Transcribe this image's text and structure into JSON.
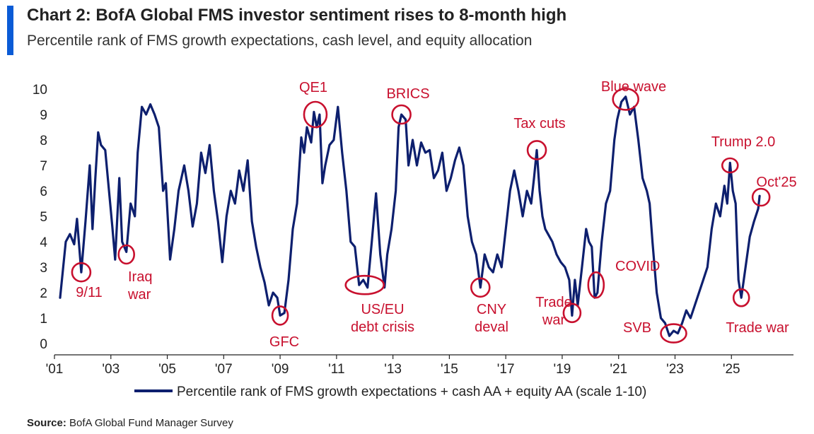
{
  "header": {
    "title": "Chart 2: BofA Global FMS investor sentiment rises to 8-month high",
    "subtitle": "Percentile rank of FMS growth expectations, cash level, and equity allocation"
  },
  "footer": {
    "source_label": "Source:",
    "source_text": "BofA Global Fund Manager Survey"
  },
  "colors": {
    "line": "#0d1f6e",
    "annotation": "#c8102e",
    "accent": "#0a5bd6"
  },
  "chart_data": {
    "type": "line",
    "title": "Chart 2: BofA Global FMS investor sentiment rises to 8-month high",
    "subtitle": "Percentile rank of FMS growth expectations, cash level, and equity allocation",
    "xlabel": "",
    "ylabel": "",
    "xlim": [
      2001.0,
      2027.2
    ],
    "ylim": [
      0,
      10
    ],
    "yticks": [
      0,
      1,
      2,
      3,
      4,
      5,
      6,
      7,
      8,
      9,
      10
    ],
    "xticks": [
      {
        "value": 2001,
        "label": "'01"
      },
      {
        "value": 2003,
        "label": "'03"
      },
      {
        "value": 2005,
        "label": "'05"
      },
      {
        "value": 2007,
        "label": "'07"
      },
      {
        "value": 2009,
        "label": "'09"
      },
      {
        "value": 2011,
        "label": "'11"
      },
      {
        "value": 2013,
        "label": "'13"
      },
      {
        "value": 2015,
        "label": "'15"
      },
      {
        "value": 2017,
        "label": "'17"
      },
      {
        "value": 2019,
        "label": "'19"
      },
      {
        "value": 2021,
        "label": "'21"
      },
      {
        "value": 2023,
        "label": "'23"
      },
      {
        "value": 2025,
        "label": "'25"
      }
    ],
    "grid": false,
    "legend_position": "bottom",
    "series": [
      {
        "name": "Percentile rank of FMS growth expectations + cash AA + equity AA (scale 1-10)",
        "points": [
          [
            2001.2,
            1.8
          ],
          [
            2001.4,
            4.0
          ],
          [
            2001.55,
            4.3
          ],
          [
            2001.7,
            3.9
          ],
          [
            2001.8,
            4.9
          ],
          [
            2001.95,
            2.8
          ],
          [
            2002.1,
            4.8
          ],
          [
            2002.25,
            7.0
          ],
          [
            2002.35,
            4.5
          ],
          [
            2002.45,
            6.5
          ],
          [
            2002.55,
            8.3
          ],
          [
            2002.65,
            7.8
          ],
          [
            2002.8,
            7.6
          ],
          [
            2002.95,
            5.8
          ],
          [
            2003.05,
            4.6
          ],
          [
            2003.15,
            3.3
          ],
          [
            2003.3,
            6.5
          ],
          [
            2003.4,
            4.0
          ],
          [
            2003.55,
            3.6
          ],
          [
            2003.7,
            5.5
          ],
          [
            2003.85,
            5.0
          ],
          [
            2003.95,
            7.5
          ],
          [
            2004.1,
            9.3
          ],
          [
            2004.25,
            9.0
          ],
          [
            2004.4,
            9.4
          ],
          [
            2004.55,
            9.0
          ],
          [
            2004.7,
            8.5
          ],
          [
            2004.85,
            6.0
          ],
          [
            2004.95,
            6.3
          ],
          [
            2005.1,
            3.3
          ],
          [
            2005.25,
            4.5
          ],
          [
            2005.4,
            6.0
          ],
          [
            2005.6,
            7.0
          ],
          [
            2005.75,
            6.0
          ],
          [
            2005.9,
            4.6
          ],
          [
            2006.05,
            5.5
          ],
          [
            2006.2,
            7.5
          ],
          [
            2006.35,
            6.7
          ],
          [
            2006.5,
            7.8
          ],
          [
            2006.65,
            6.0
          ],
          [
            2006.8,
            4.8
          ],
          [
            2006.95,
            3.2
          ],
          [
            2007.1,
            5.0
          ],
          [
            2007.25,
            6.0
          ],
          [
            2007.4,
            5.5
          ],
          [
            2007.55,
            6.8
          ],
          [
            2007.7,
            6.0
          ],
          [
            2007.85,
            7.2
          ],
          [
            2008.0,
            4.8
          ],
          [
            2008.15,
            3.8
          ],
          [
            2008.3,
            3.0
          ],
          [
            2008.45,
            2.4
          ],
          [
            2008.6,
            1.5
          ],
          [
            2008.75,
            2.0
          ],
          [
            2008.9,
            1.8
          ],
          [
            2009.0,
            1.1
          ],
          [
            2009.15,
            1.2
          ],
          [
            2009.3,
            2.5
          ],
          [
            2009.45,
            4.5
          ],
          [
            2009.6,
            5.5
          ],
          [
            2009.75,
            8.1
          ],
          [
            2009.85,
            7.5
          ],
          [
            2009.95,
            8.5
          ],
          [
            2010.1,
            7.9
          ],
          [
            2010.2,
            9.1
          ],
          [
            2010.3,
            8.5
          ],
          [
            2010.4,
            9.0
          ],
          [
            2010.5,
            6.3
          ],
          [
            2010.6,
            7.0
          ],
          [
            2010.75,
            7.8
          ],
          [
            2010.9,
            8.0
          ],
          [
            2011.05,
            9.3
          ],
          [
            2011.2,
            7.5
          ],
          [
            2011.35,
            6.0
          ],
          [
            2011.5,
            4.0
          ],
          [
            2011.65,
            3.8
          ],
          [
            2011.8,
            2.3
          ],
          [
            2011.95,
            2.5
          ],
          [
            2012.1,
            2.2
          ],
          [
            2012.25,
            4.0
          ],
          [
            2012.4,
            5.9
          ],
          [
            2012.55,
            3.5
          ],
          [
            2012.7,
            2.2
          ],
          [
            2012.8,
            3.5
          ],
          [
            2012.95,
            4.5
          ],
          [
            2013.1,
            6.0
          ],
          [
            2013.2,
            8.5
          ],
          [
            2013.3,
            9.0
          ],
          [
            2013.45,
            8.8
          ],
          [
            2013.55,
            7.0
          ],
          [
            2013.7,
            8.0
          ],
          [
            2013.85,
            7.0
          ],
          [
            2014.0,
            7.9
          ],
          [
            2014.15,
            7.5
          ],
          [
            2014.3,
            7.6
          ],
          [
            2014.45,
            6.5
          ],
          [
            2014.6,
            6.8
          ],
          [
            2014.75,
            7.5
          ],
          [
            2014.9,
            6.0
          ],
          [
            2015.05,
            6.5
          ],
          [
            2015.2,
            7.2
          ],
          [
            2015.35,
            7.7
          ],
          [
            2015.5,
            7.0
          ],
          [
            2015.65,
            5.0
          ],
          [
            2015.8,
            4.0
          ],
          [
            2015.95,
            3.5
          ],
          [
            2016.1,
            2.2
          ],
          [
            2016.25,
            3.5
          ],
          [
            2016.4,
            3.0
          ],
          [
            2016.55,
            2.8
          ],
          [
            2016.7,
            3.5
          ],
          [
            2016.85,
            3.0
          ],
          [
            2017.0,
            4.5
          ],
          [
            2017.15,
            6.0
          ],
          [
            2017.3,
            6.8
          ],
          [
            2017.45,
            6.0
          ],
          [
            2017.6,
            5.0
          ],
          [
            2017.75,
            6.0
          ],
          [
            2017.9,
            5.5
          ],
          [
            2018.0,
            6.5
          ],
          [
            2018.1,
            7.6
          ],
          [
            2018.2,
            6.0
          ],
          [
            2018.3,
            5.0
          ],
          [
            2018.4,
            4.5
          ],
          [
            2018.5,
            4.3
          ],
          [
            2018.65,
            4.0
          ],
          [
            2018.8,
            3.5
          ],
          [
            2018.95,
            3.2
          ],
          [
            2019.1,
            3.0
          ],
          [
            2019.25,
            2.5
          ],
          [
            2019.35,
            1.1
          ],
          [
            2019.45,
            2.5
          ],
          [
            2019.55,
            1.5
          ],
          [
            2019.7,
            3.0
          ],
          [
            2019.85,
            4.5
          ],
          [
            2019.95,
            4.0
          ],
          [
            2020.05,
            3.8
          ],
          [
            2020.15,
            1.8
          ],
          [
            2020.25,
            2.0
          ],
          [
            2020.4,
            4.0
          ],
          [
            2020.55,
            5.5
          ],
          [
            2020.7,
            6.0
          ],
          [
            2020.85,
            8.0
          ],
          [
            2020.95,
            8.8
          ],
          [
            2021.1,
            9.5
          ],
          [
            2021.25,
            9.7
          ],
          [
            2021.4,
            9.0
          ],
          [
            2021.55,
            9.3
          ],
          [
            2021.7,
            8.0
          ],
          [
            2021.85,
            6.5
          ],
          [
            2022.0,
            6.0
          ],
          [
            2022.1,
            5.5
          ],
          [
            2022.2,
            4.0
          ],
          [
            2022.35,
            2.0
          ],
          [
            2022.5,
            1.0
          ],
          [
            2022.65,
            0.8
          ],
          [
            2022.8,
            0.3
          ],
          [
            2022.95,
            0.5
          ],
          [
            2023.1,
            0.4
          ],
          [
            2023.25,
            0.8
          ],
          [
            2023.4,
            1.3
          ],
          [
            2023.55,
            1.0
          ],
          [
            2023.7,
            1.5
          ],
          [
            2023.85,
            2.0
          ],
          [
            2024.0,
            2.5
          ],
          [
            2024.15,
            3.0
          ],
          [
            2024.3,
            4.5
          ],
          [
            2024.45,
            5.5
          ],
          [
            2024.6,
            5.0
          ],
          [
            2024.75,
            6.2
          ],
          [
            2024.85,
            5.5
          ],
          [
            2024.95,
            7.1
          ],
          [
            2025.05,
            6.0
          ],
          [
            2025.15,
            5.5
          ],
          [
            2025.25,
            2.5
          ],
          [
            2025.35,
            1.8
          ],
          [
            2025.5,
            3.0
          ],
          [
            2025.65,
            4.2
          ],
          [
            2025.8,
            4.8
          ],
          [
            2025.95,
            5.3
          ],
          [
            2026.0,
            5.8
          ]
        ]
      }
    ],
    "annotations": [
      {
        "lines": [
          "9/11"
        ],
        "x": 2001.95,
        "y": 2.8,
        "rx": 13,
        "ry": 13
      },
      {
        "lines": [
          "Iraq",
          "war"
        ],
        "x": 2003.55,
        "y": 3.5,
        "rx": 11,
        "ry": 13
      },
      {
        "lines": [
          "GFC"
        ],
        "x": 2009.0,
        "y": 1.1,
        "rx": 11,
        "ry": 13
      },
      {
        "lines": [
          "QE1"
        ],
        "x": 2010.25,
        "y": 9.0,
        "rx": 16,
        "ry": 18
      },
      {
        "lines": [
          "US/EU",
          "debt crisis"
        ],
        "x": 2012.0,
        "y": 2.3,
        "rx": 27,
        "ry": 13
      },
      {
        "lines": [
          "BRICS"
        ],
        "x": 2013.3,
        "y": 9.0,
        "rx": 13,
        "ry": 13
      },
      {
        "lines": [
          "CNY",
          "deval"
        ],
        "x": 2016.1,
        "y": 2.2,
        "rx": 13,
        "ry": 13
      },
      {
        "lines": [
          "Tax cuts"
        ],
        "x": 2018.1,
        "y": 7.6,
        "rx": 13,
        "ry": 13
      },
      {
        "lines": [
          "Trade",
          "war"
        ],
        "x": 2019.35,
        "y": 1.2,
        "rx": 12,
        "ry": 13
      },
      {
        "lines": [
          "COVID"
        ],
        "x": 2020.2,
        "y": 2.3,
        "rx": 11,
        "ry": 18
      },
      {
        "lines": [
          "Blue wave"
        ],
        "x": 2021.25,
        "y": 9.6,
        "rx": 18,
        "ry": 15
      },
      {
        "lines": [
          "SVB"
        ],
        "x": 2022.95,
        "y": 0.4,
        "rx": 18,
        "ry": 13
      },
      {
        "lines": [
          "Trump 2.0"
        ],
        "x": 2024.95,
        "y": 7.0,
        "rx": 11,
        "ry": 10
      },
      {
        "lines": [
          "Trade war"
        ],
        "x": 2025.35,
        "y": 1.8,
        "rx": 11,
        "ry": 12
      },
      {
        "lines": [
          "Oct'25"
        ],
        "x": 2026.05,
        "y": 5.75,
        "rx": 12,
        "ry": 12
      }
    ]
  }
}
